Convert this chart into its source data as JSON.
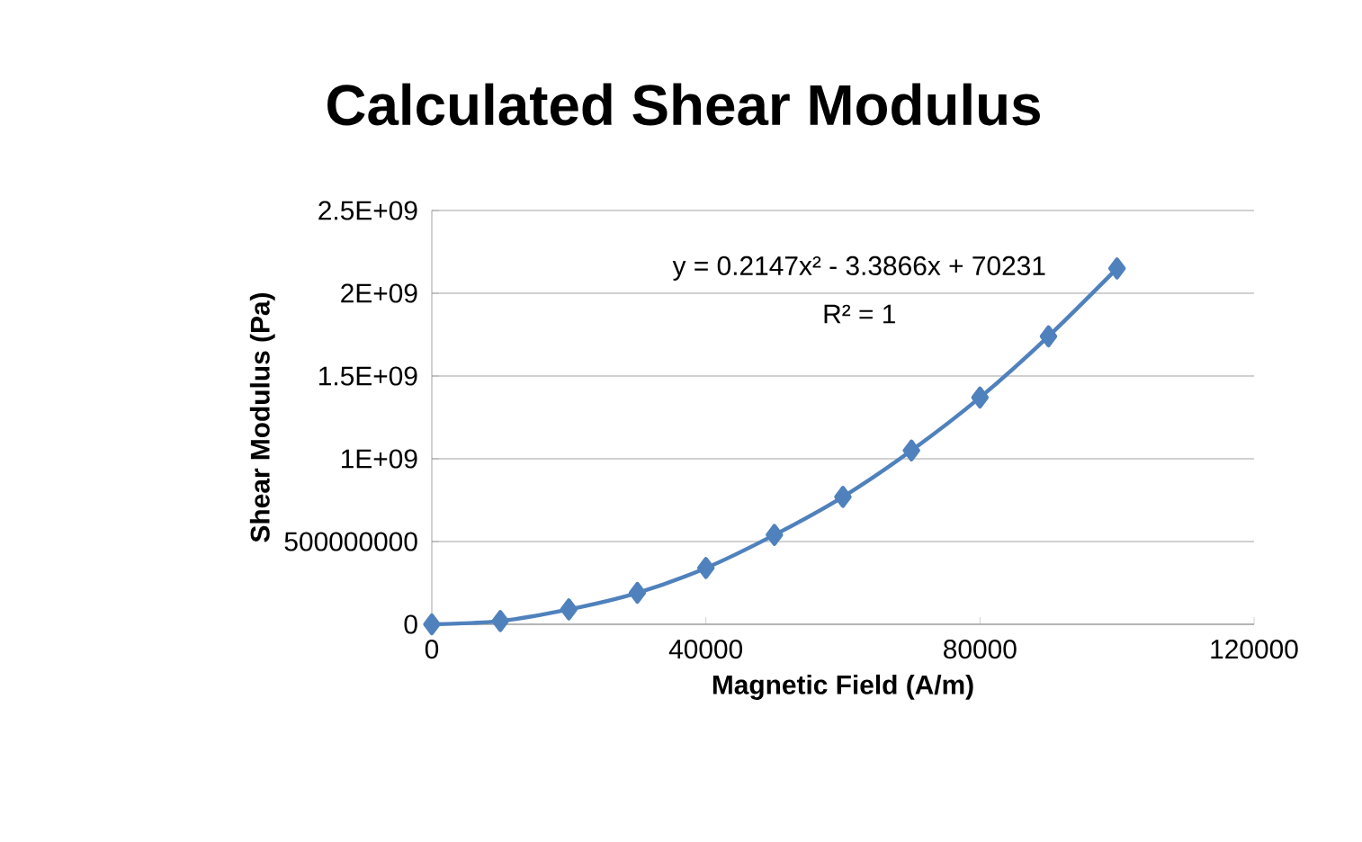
{
  "chart_data": {
    "type": "line",
    "title": "Calculated Shear Modulus",
    "xlabel": "Magnetic Field (A/m)",
    "ylabel": "Shear Modulus (Pa)",
    "x": [
      0,
      10000,
      20000,
      30000,
      40000,
      50000,
      60000,
      70000,
      80000,
      90000,
      100000
    ],
    "series": [
      {
        "color": "#4f81bd",
        "values": [
          0,
          20000000,
          90000000,
          190000000,
          340000000,
          540000000,
          770000000,
          1050000000,
          1370000000,
          1740000000,
          2150000000
        ]
      }
    ],
    "xlim": [
      0,
      120000
    ],
    "xticks": [
      0,
      40000,
      80000,
      120000
    ],
    "ylim": [
      0,
      2500000000
    ],
    "yticks": [
      0,
      {
        "value": 500000000,
        "label": "500000000"
      },
      {
        "value": 1000000000,
        "label": "1E+09"
      },
      {
        "value": 1500000000,
        "label": "1.5E+09"
      },
      {
        "value": 2000000000,
        "label": "2E+09"
      },
      {
        "value": 2500000000,
        "label": "2.5E+09"
      }
    ],
    "annotations": [
      "y = 0.2147x² - 3.3866x + 70231",
      "R² = 1"
    ],
    "grid": "y",
    "legend": false,
    "marker": "diamond",
    "line_style": "solid"
  }
}
